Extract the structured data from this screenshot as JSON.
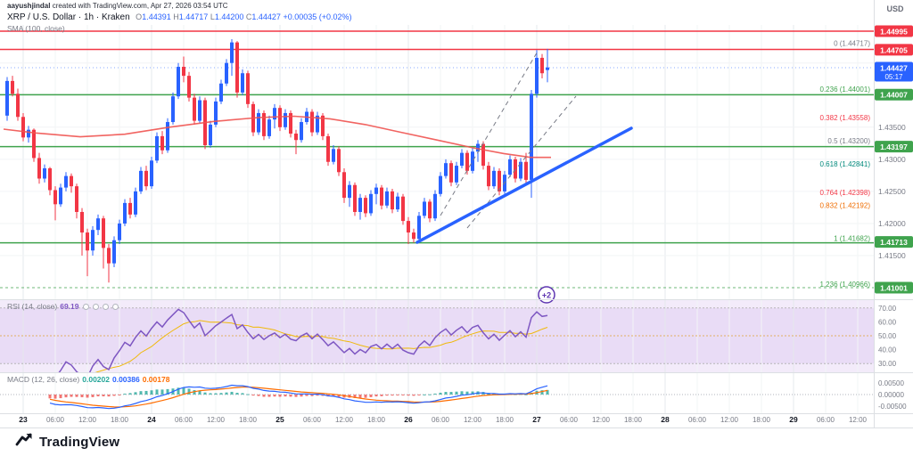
{
  "attribution": {
    "author": "aayushjindal",
    "rest": " created with TradingView.com, Apr 27, 2026 03:54 UTC"
  },
  "header": {
    "title": "XRP / U.S. Dollar · 1h · Kraken",
    "o_label": "O",
    "o": "1.44391",
    "h_label": "H",
    "h": "1.44717",
    "l_label": "L",
    "l": "1.44200",
    "c_label": "C",
    "c": "1.44427",
    "change": "+0.00035 (+0.02%)",
    "sma_label": "SMA (100, close)"
  },
  "axis": {
    "currency": "USD"
  },
  "footer": {
    "brand": "TradingView"
  },
  "colors": {
    "up": "#2962ff",
    "down": "#f23645",
    "sma": "#ef5350",
    "trend": "#2962ff",
    "rsi": "#7e57c2",
    "rsi_ma": "#f0b90b",
    "macd": "#2962ff",
    "signal": "#ff6d00",
    "hist_pos": "#26a69a",
    "hist_neg": "#ef5350",
    "badge_green": "#3fa34d",
    "badge_red": "#f23645",
    "badge_blue": "#2962ff"
  },
  "chart_data": {
    "type": "candlestick",
    "title": "XRP / U.S. Dollar",
    "exchange": "Kraken",
    "interval": "1h",
    "price_range": [
      1.408,
      1.452
    ],
    "candles": [
      [
        1.4368,
        1.4428,
        1.436,
        1.4422
      ],
      [
        1.4422,
        1.443,
        1.4398,
        1.4402
      ],
      [
        1.4402,
        1.441,
        1.436,
        1.4366
      ],
      [
        1.4366,
        1.4372,
        1.4328,
        1.4334
      ],
      [
        1.4334,
        1.4352,
        1.4326,
        1.4346
      ],
      [
        1.4346,
        1.4348,
        1.4296,
        1.4302
      ],
      [
        1.4302,
        1.431,
        1.4262,
        1.427
      ],
      [
        1.427,
        1.4292,
        1.4264,
        1.4286
      ],
      [
        1.4286,
        1.4288,
        1.4244,
        1.4252
      ],
      [
        1.4252,
        1.4258,
        1.4205,
        1.423
      ],
      [
        1.423,
        1.4262,
        1.4226,
        1.4256
      ],
      [
        1.4256,
        1.428,
        1.425,
        1.4274
      ],
      [
        1.4274,
        1.4278,
        1.4248,
        1.4258
      ],
      [
        1.4258,
        1.4262,
        1.4208,
        1.4218
      ],
      [
        1.4218,
        1.4224,
        1.415,
        1.4186
      ],
      [
        1.4186,
        1.4192,
        1.4118,
        1.4158
      ],
      [
        1.4158,
        1.4196,
        1.415,
        1.419
      ],
      [
        1.419,
        1.4214,
        1.4182,
        1.4208
      ],
      [
        1.4208,
        1.4212,
        1.413,
        1.4162
      ],
      [
        1.4162,
        1.4168,
        1.4108,
        1.4138
      ],
      [
        1.4138,
        1.418,
        1.4132,
        1.4174
      ],
      [
        1.4174,
        1.4206,
        1.4168,
        1.42
      ],
      [
        1.42,
        1.4238,
        1.4196,
        1.4232
      ],
      [
        1.4232,
        1.424,
        1.4208,
        1.4214
      ],
      [
        1.4214,
        1.4256,
        1.421,
        1.425
      ],
      [
        1.425,
        1.4288,
        1.4246,
        1.4282
      ],
      [
        1.4282,
        1.429,
        1.4252,
        1.4258
      ],
      [
        1.4258,
        1.4304,
        1.4254,
        1.4298
      ],
      [
        1.4298,
        1.4342,
        1.4294,
        1.4336
      ],
      [
        1.4336,
        1.4344,
        1.4308,
        1.4314
      ],
      [
        1.4314,
        1.4364,
        1.431,
        1.4358
      ],
      [
        1.4358,
        1.4404,
        1.4354,
        1.4398
      ],
      [
        1.4398,
        1.445,
        1.4394,
        1.4444
      ],
      [
        1.4444,
        1.446,
        1.442,
        1.443
      ],
      [
        1.443,
        1.4436,
        1.439,
        1.4396
      ],
      [
        1.4396,
        1.4402,
        1.4354,
        1.436
      ],
      [
        1.436,
        1.4398,
        1.4356,
        1.4392
      ],
      [
        1.4392,
        1.4396,
        1.4316,
        1.4322
      ],
      [
        1.4322,
        1.436,
        1.4318,
        1.4354
      ],
      [
        1.4354,
        1.4396,
        1.435,
        1.439
      ],
      [
        1.439,
        1.4424,
        1.4386,
        1.4418
      ],
      [
        1.4418,
        1.4456,
        1.4414,
        1.445
      ],
      [
        1.445,
        1.4487,
        1.443,
        1.4482
      ],
      [
        1.4482,
        1.4484,
        1.4396,
        1.4404
      ],
      [
        1.4404,
        1.444,
        1.44,
        1.4434
      ],
      [
        1.4434,
        1.4438,
        1.438,
        1.4386
      ],
      [
        1.4386,
        1.439,
        1.4336,
        1.4342
      ],
      [
        1.4342,
        1.4378,
        1.4338,
        1.4372
      ],
      [
        1.4372,
        1.4376,
        1.433,
        1.4336
      ],
      [
        1.4336,
        1.4368,
        1.4332,
        1.4362
      ],
      [
        1.4362,
        1.4386,
        1.4348,
        1.438
      ],
      [
        1.438,
        1.4384,
        1.4344,
        1.435
      ],
      [
        1.435,
        1.4378,
        1.4346,
        1.4372
      ],
      [
        1.4372,
        1.4376,
        1.4334,
        1.434
      ],
      [
        1.434,
        1.4346,
        1.4308,
        1.433
      ],
      [
        1.433,
        1.4364,
        1.4326,
        1.4358
      ],
      [
        1.4358,
        1.438,
        1.4354,
        1.4374
      ],
      [
        1.4374,
        1.4378,
        1.4336,
        1.4342
      ],
      [
        1.4342,
        1.4374,
        1.4338,
        1.4368
      ],
      [
        1.4368,
        1.4372,
        1.433,
        1.4336
      ],
      [
        1.4336,
        1.434,
        1.429,
        1.4296
      ],
      [
        1.4296,
        1.4322,
        1.4292,
        1.4316
      ],
      [
        1.4316,
        1.432,
        1.4274,
        1.428
      ],
      [
        1.428,
        1.4286,
        1.4232,
        1.424
      ],
      [
        1.424,
        1.4266,
        1.4226,
        1.426
      ],
      [
        1.426,
        1.4264,
        1.4212,
        1.4218
      ],
      [
        1.4218,
        1.4246,
        1.4206,
        1.424
      ],
      [
        1.424,
        1.4244,
        1.421,
        1.4216
      ],
      [
        1.4216,
        1.4252,
        1.4212,
        1.4246
      ],
      [
        1.4246,
        1.4262,
        1.423,
        1.4256
      ],
      [
        1.4256,
        1.426,
        1.4222,
        1.4228
      ],
      [
        1.4228,
        1.4256,
        1.4224,
        1.425
      ],
      [
        1.425,
        1.4254,
        1.4216,
        1.4222
      ],
      [
        1.4222,
        1.4248,
        1.4218,
        1.4242
      ],
      [
        1.4242,
        1.4246,
        1.4198,
        1.4204
      ],
      [
        1.4204,
        1.421,
        1.4168,
        1.4186
      ],
      [
        1.4186,
        1.4192,
        1.417,
        1.4176
      ],
      [
        1.4176,
        1.4218,
        1.4172,
        1.4212
      ],
      [
        1.4212,
        1.424,
        1.4208,
        1.4234
      ],
      [
        1.4234,
        1.4238,
        1.4202,
        1.4208
      ],
      [
        1.4208,
        1.4252,
        1.4204,
        1.4246
      ],
      [
        1.4246,
        1.428,
        1.4242,
        1.4274
      ],
      [
        1.4274,
        1.43,
        1.427,
        1.4294
      ],
      [
        1.4294,
        1.4298,
        1.4258,
        1.4264
      ],
      [
        1.4264,
        1.4296,
        1.426,
        1.429
      ],
      [
        1.429,
        1.4316,
        1.4286,
        1.431
      ],
      [
        1.431,
        1.4314,
        1.4276,
        1.4282
      ],
      [
        1.4282,
        1.4318,
        1.4278,
        1.4312
      ],
      [
        1.4312,
        1.433,
        1.4296,
        1.4324
      ],
      [
        1.4324,
        1.4328,
        1.4284,
        1.429
      ],
      [
        1.429,
        1.4296,
        1.4252,
        1.4258
      ],
      [
        1.4258,
        1.4288,
        1.4254,
        1.4282
      ],
      [
        1.4282,
        1.4286,
        1.4244,
        1.425
      ],
      [
        1.425,
        1.4282,
        1.4246,
        1.4276
      ],
      [
        1.4276,
        1.4306,
        1.4272,
        1.43
      ],
      [
        1.43,
        1.4304,
        1.4264,
        1.427
      ],
      [
        1.427,
        1.4302,
        1.4266,
        1.4296
      ],
      [
        1.4296,
        1.431,
        1.4262,
        1.4268
      ],
      [
        1.4268,
        1.4408,
        1.424,
        1.4402
      ],
      [
        1.4402,
        1.447,
        1.4396,
        1.4458
      ],
      [
        1.4458,
        1.4464,
        1.4426,
        1.4434
      ],
      [
        1.4439,
        1.4472,
        1.442,
        1.4443
      ]
    ],
    "sma_points": [
      [
        4,
        1.4347
      ],
      [
        40,
        1.4341
      ],
      [
        90,
        1.4335
      ],
      [
        140,
        1.4339
      ],
      [
        190,
        1.435
      ],
      [
        240,
        1.4359
      ],
      [
        290,
        1.4365
      ],
      [
        330,
        1.4367
      ],
      [
        370,
        1.4363
      ],
      [
        410,
        1.4354
      ],
      [
        450,
        1.4342
      ],
      [
        490,
        1.433
      ],
      [
        530,
        1.4318
      ],
      [
        565,
        1.4309
      ],
      [
        595,
        1.4303
      ],
      [
        618,
        1.4303
      ]
    ],
    "grid_prices": [
      1.445,
      1.44,
      1.435,
      1.43,
      1.425,
      1.42,
      1.415
    ],
    "y_ticks": [
      {
        "label": "1.43500",
        "price": 1.435
      },
      {
        "label": "1.43000",
        "price": 1.43
      },
      {
        "label": "1.42500",
        "price": 1.425
      },
      {
        "label": "1.42000",
        "price": 1.42
      },
      {
        "label": "1.41500",
        "price": 1.415
      }
    ],
    "badges": [
      {
        "label": "1.44995",
        "price": 1.44995,
        "color": "#f23645"
      },
      {
        "label": "1.44705",
        "price": 1.44705,
        "color": "#f23645"
      },
      {
        "label": "1.44427",
        "price": 1.44427,
        "color": "#2962ff",
        "countdown": "05:17"
      },
      {
        "label": "1.44007",
        "price": 1.44007,
        "color": "#3fa34d"
      },
      {
        "label": "1.43197",
        "price": 1.43197,
        "color": "#3fa34d"
      },
      {
        "label": "1.41713",
        "price": 1.41713,
        "color": "#3fa34d"
      },
      {
        "label": "1.41001",
        "price": 1.41001,
        "color": "#3fa34d"
      }
    ],
    "h_lines": [
      {
        "price": 1.44995,
        "color": "#f23645",
        "w": 1.5
      },
      {
        "price": 1.4471,
        "color": "#f23645",
        "w": 1.5
      },
      {
        "price": 1.44005,
        "color": "#3fa34d",
        "w": 1.5
      },
      {
        "price": 1.43198,
        "color": "#3fa34d",
        "w": 1.5
      },
      {
        "price": 1.417,
        "color": "#3fa34d",
        "w": 1.5
      },
      {
        "price": 1.41001,
        "color": "#3fa34d",
        "w": 1,
        "dash": "3,3"
      }
    ],
    "fib_labels": [
      {
        "text": "0 (1.44717)",
        "price": 1.44717,
        "color": "#787b86"
      },
      {
        "text": "0.236 (1.44001)",
        "price": 1.44001,
        "color": "#3fa34d"
      },
      {
        "text": "0.382 (1.43558)",
        "price": 1.43558,
        "color": "#f23645"
      },
      {
        "text": "0.5 (1.43200)",
        "price": 1.432,
        "color": "#787b86"
      },
      {
        "text": "0.618 (1.42841)",
        "price": 1.42841,
        "color": "#00897b"
      },
      {
        "text": "0.764 (1.42398)",
        "price": 1.42398,
        "color": "#f23645"
      },
      {
        "text": "0.832 (1.42192)",
        "price": 1.42192,
        "color": "#ef6c00"
      },
      {
        "text": "1 (1.41682)",
        "price": 1.41682,
        "color": "#3fa34d"
      },
      {
        "text": "1.236 (1.40966)",
        "price": 1.40966,
        "color": "#3fa34d"
      }
    ],
    "trendline": [
      [
        468,
        272
      ],
      [
        708,
        144
      ]
    ],
    "dashed_lines": [
      [
        [
          494,
          242
        ],
        [
          604,
          56
        ]
      ],
      [
        [
          524,
          256
        ],
        [
          646,
          108
        ]
      ]
    ],
    "annotation": {
      "text": "+2",
      "x": 613,
      "y": 331
    },
    "current_price_line": 1.44427,
    "x_labels": [
      "23",
      "06:00",
      "12:00",
      "18:00",
      "24",
      "06:00",
      "12:00",
      "18:00",
      "25",
      "06:00",
      "12:00",
      "18:00",
      "26",
      "06:00",
      "12:00",
      "18:00",
      "27",
      "06:00",
      "12:00",
      "18:00",
      "28",
      "06:00",
      "12:00",
      "18:00",
      "29",
      "06:00",
      "12:00"
    ],
    "rsi_panel": {
      "label": "RSI (14, close)",
      "value": "69.19",
      "ticks": [
        {
          "label": "70.00",
          "v": 70
        },
        {
          "label": "60.00",
          "v": 60
        },
        {
          "label": "50.00",
          "v": 50
        },
        {
          "label": "40.00",
          "v": 40
        },
        {
          "label": "30.00",
          "v": 30
        }
      ]
    },
    "macd_panel": {
      "label": "MACD (12, 26, close)",
      "v1": "0.00202",
      "v2": "0.00386",
      "v3": "0.00178",
      "ticks": [
        {
          "label": "0.00500",
          "v": 0.005
        },
        {
          "label": "0.00000",
          "v": 0
        },
        {
          "label": "-0.00500",
          "v": -0.005
        }
      ]
    }
  }
}
